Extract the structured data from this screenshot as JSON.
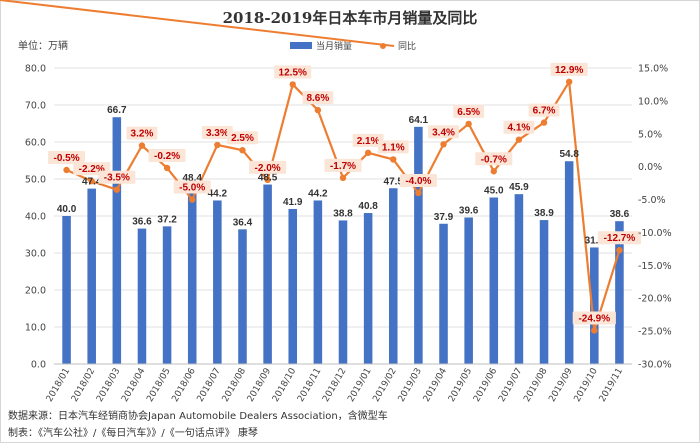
{
  "chart_data": {
    "type": "bar+line",
    "title": "2018-2019年日本车市月销量及同比",
    "unit_label": "单位：万辆",
    "categories": [
      "2018/01",
      "2018/02",
      "2018/03",
      "2018/04",
      "2018/05",
      "2018/06",
      "2018/07",
      "2018/08",
      "2018/09",
      "2018/10",
      "2018/11",
      "2018/12",
      "2019/01",
      "2019/02",
      "2019/03",
      "2019/04",
      "2019/05",
      "2019/06",
      "2019/07",
      "2019/08",
      "2019/09",
      "2019/10",
      "2019/11"
    ],
    "series": [
      {
        "name": "当月销量",
        "kind": "bar",
        "axis": "left",
        "color": "#4472c4",
        "values": [
          40.0,
          47.4,
          66.7,
          36.6,
          37.2,
          48.4,
          44.2,
          36.4,
          48.5,
          41.9,
          44.2,
          38.8,
          40.8,
          47.5,
          64.1,
          37.9,
          39.6,
          45.0,
          45.9,
          38.9,
          54.8,
          31.5,
          38.6
        ],
        "labels": [
          "40.0",
          "47.4",
          "66.7",
          "36.6",
          "37.2",
          "48.4",
          "44.2",
          "36.4",
          "48.5",
          "41.9",
          "44.2",
          "38.8",
          "40.8",
          "47.5",
          "64.1",
          "37.9",
          "39.6",
          "45.0",
          "45.9",
          "38.9",
          "54.8",
          "31.5",
          "38.6"
        ]
      },
      {
        "name": "同比",
        "kind": "line",
        "axis": "right",
        "color": "#ed7d31",
        "values": [
          -0.5,
          -2.2,
          -3.5,
          3.2,
          -0.2,
          -5.0,
          3.3,
          2.5,
          -2.0,
          12.5,
          8.6,
          -1.7,
          2.1,
          1.1,
          -4.0,
          3.4,
          6.5,
          -0.7,
          4.1,
          6.7,
          12.9,
          -24.9,
          -12.7
        ],
        "labels": [
          "-0.5%",
          "-2.2%",
          "-3.5%",
          "3.2%",
          "-0.2%",
          "-5.0%",
          "3.3%",
          "2.5%",
          "-2.0%",
          "12.5%",
          "8.6%",
          "-1.7%",
          "2.1%",
          "1.1%",
          "-4.0%",
          "3.4%",
          "6.5%",
          "-0.7%",
          "4.1%",
          "6.7%",
          "12.9%",
          "-24.9%",
          "-12.7%"
        ]
      }
    ],
    "y_left": {
      "min": 0,
      "max": 80,
      "step": 10,
      "tick_labels": [
        "0.0",
        "10.0",
        "20.0",
        "30.0",
        "40.0",
        "50.0",
        "60.0",
        "70.0",
        "80.0"
      ]
    },
    "y_right": {
      "min": -30,
      "max": 15,
      "step": 5,
      "tick_labels": [
        "-30.0%",
        "-25.0%",
        "-20.0%",
        "-15.0%",
        "-10.0%",
        "-5.0%",
        "0.0%",
        "5.0%",
        "10.0%",
        "15.0%"
      ]
    },
    "grid": true,
    "legend": "top-center"
  },
  "footer": {
    "source": "数据来源：日本汽车经销商协会Japan Automobile Dealers Association，含微型车",
    "credit": "制表：《汽车公社》/《每日汽车》》/《一句话点评》  康琴"
  }
}
